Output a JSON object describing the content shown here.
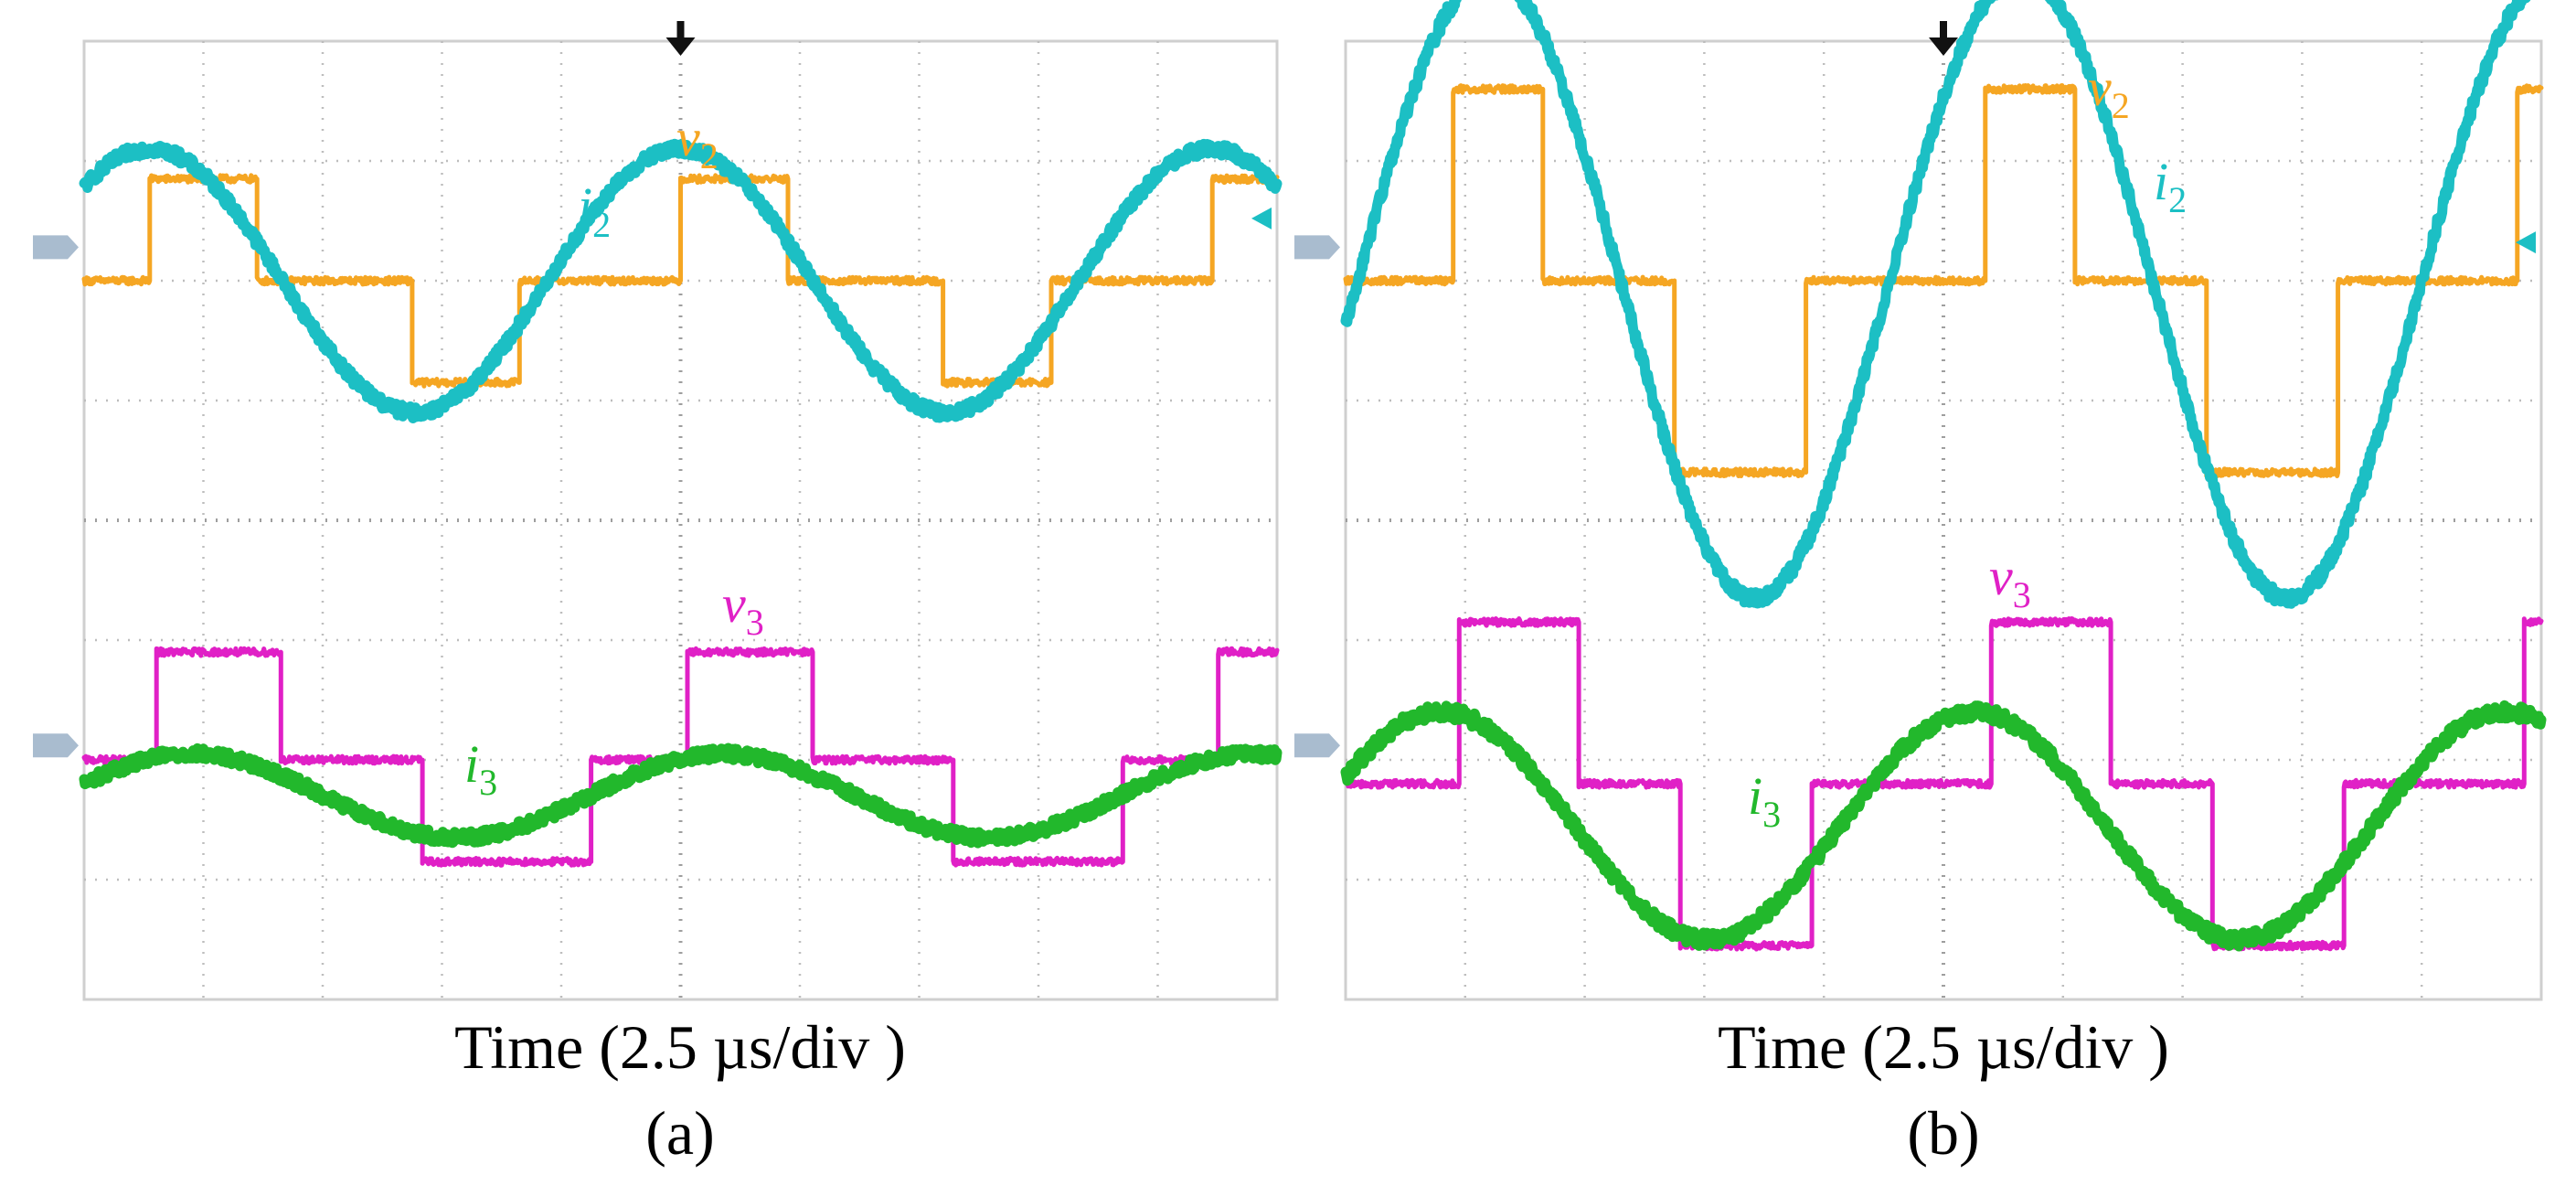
{
  "colors": {
    "v2": "#f5a623",
    "i2": "#1cbfc4",
    "v3": "#e020c6",
    "i3": "#22b82c",
    "ground_marker": "#a9bccf",
    "trigger_marker": "#111111"
  },
  "chart_data": [
    {
      "type": "line",
      "panel": "a",
      "xlabel": "Time (2.5 µs/div )",
      "caption": "(a)",
      "x_divisions": 10,
      "y_divisions": 8,
      "time_per_div_us": 2.5,
      "xlim": [
        0,
        10
      ],
      "ylim": [
        -4,
        4
      ],
      "series": [
        {
          "name": "v2",
          "label_main": "v",
          "label_sub": "2",
          "color_key": "v2",
          "waveform": "three_level",
          "period_div": 4.45,
          "phase_div": 5.0,
          "offset_div": 2.0,
          "pos_level_div": 0.85,
          "neg_level_div": -0.85,
          "pos_on_div": [
            0.0,
            0.9
          ],
          "neg_on_div": [
            2.2,
            3.1
          ],
          "noise_div": 0.03
        },
        {
          "name": "i2",
          "label_main": "i",
          "label_sub": "2",
          "color_key": "i2",
          "waveform": "sine",
          "period_div": 4.45,
          "phase_div": 5.0,
          "offset_div": 2.0,
          "amplitude_div": 1.1,
          "noise_div": 0.05
        },
        {
          "name": "v3",
          "label_main": "v",
          "label_sub": "3",
          "color_key": "v3",
          "waveform": "three_level",
          "period_div": 4.45,
          "phase_div": 5.0,
          "offset_div": -2.0,
          "pos_level_div": 0.9,
          "neg_level_div": -0.85,
          "pos_on_div": [
            0.05,
            1.1
          ],
          "neg_on_div": [
            2.28,
            3.7
          ],
          "noise_div": 0.03
        },
        {
          "name": "i3",
          "label_main": "i",
          "label_sub": "3",
          "color_key": "i3",
          "waveform": "sine",
          "period_div": 4.45,
          "phase_div": 5.35,
          "offset_div": -2.3,
          "amplitude_div": 0.35,
          "noise_div": 0.05
        }
      ]
    },
    {
      "type": "line",
      "panel": "b",
      "xlabel": "Time (2.5 µs/div )",
      "caption": "(b)",
      "x_divisions": 10,
      "y_divisions": 8,
      "time_per_div_us": 2.5,
      "xlim": [
        0,
        10
      ],
      "ylim": [
        -4,
        4
      ],
      "series": [
        {
          "name": "v2",
          "label_main": "v",
          "label_sub": "2",
          "color_key": "v2",
          "waveform": "three_level",
          "period_div": 4.45,
          "phase_div": 5.35,
          "offset_div": 2.0,
          "pos_level_div": 1.6,
          "neg_level_div": -1.6,
          "pos_on_div": [
            0.0,
            0.75
          ],
          "neg_on_div": [
            1.85,
            2.95
          ],
          "noise_div": 0.03
        },
        {
          "name": "i2",
          "label_main": "i",
          "label_sub": "2",
          "color_key": "i2",
          "waveform": "sine",
          "period_div": 4.45,
          "phase_div": 5.65,
          "offset_div": 1.95,
          "amplitude_div": 2.6,
          "noise_div": 0.06
        },
        {
          "name": "v3",
          "label_main": "v",
          "label_sub": "3",
          "color_key": "v3",
          "waveform": "three_level",
          "period_div": 4.45,
          "phase_div": 5.35,
          "offset_div": -2.2,
          "pos_level_div": 1.35,
          "neg_level_div": -1.35,
          "pos_on_div": [
            0.05,
            1.05
          ],
          "neg_on_div": [
            1.9,
            3.0
          ],
          "noise_div": 0.03
        },
        {
          "name": "i3",
          "label_main": "i",
          "label_sub": "3",
          "color_key": "i3",
          "waveform": "sine",
          "period_div": 4.45,
          "phase_div": 5.25,
          "offset_div": -2.55,
          "amplitude_div": 0.95,
          "noise_div": 0.06
        }
      ]
    }
  ]
}
